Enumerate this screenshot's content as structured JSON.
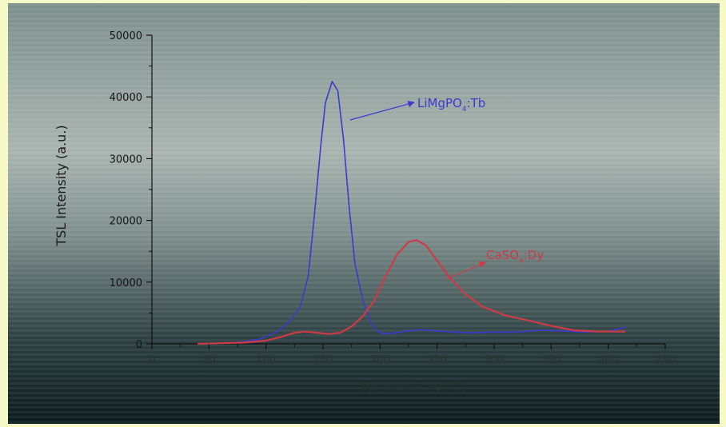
{
  "chart_data": {
    "type": "line",
    "title": "",
    "xlabel": "Temperature(°C)",
    "ylabel": "TSL Intensity (a.u.)",
    "xlim": [
      0,
      450
    ],
    "ylim": [
      0,
      50000
    ],
    "xticks": [
      "0",
      "50",
      "100",
      "150",
      "200",
      "250",
      "300",
      "350",
      "400",
      "450"
    ],
    "yticks": [
      "0",
      "10000",
      "20000",
      "30000",
      "40000",
      "50000"
    ],
    "grid": false,
    "series": [
      {
        "name": "LiMgPO4:Tb",
        "color": "#3d3ad0",
        "x": [
          40,
          60,
          80,
          95,
          110,
          120,
          130,
          137,
          142,
          148,
          152,
          158,
          163,
          168,
          173,
          178,
          185,
          192,
          198,
          203,
          210,
          220,
          235,
          250,
          265,
          280,
          300,
          320,
          340,
          360,
          380,
          400,
          415
        ],
        "y": [
          0,
          100,
          300,
          800,
          2000,
          3500,
          6000,
          11000,
          20000,
          32000,
          39000,
          42500,
          41000,
          33000,
          22000,
          13000,
          7000,
          3500,
          2000,
          1700,
          1700,
          2000,
          2300,
          2100,
          1900,
          1800,
          1900,
          1900,
          2200,
          2100,
          1900,
          2000,
          2700
        ]
      },
      {
        "name": "CaSO4:Dy",
        "color": "#cc3b46",
        "x": [
          40,
          60,
          80,
          100,
          115,
          125,
          135,
          145,
          155,
          165,
          175,
          185,
          195,
          205,
          215,
          225,
          232,
          240,
          250,
          260,
          275,
          290,
          310,
          330,
          350,
          370,
          390,
          415
        ],
        "y": [
          0,
          100,
          200,
          500,
          1200,
          1800,
          2000,
          1800,
          1600,
          1800,
          2800,
          4500,
          7000,
          11000,
          14500,
          16500,
          16800,
          16000,
          13500,
          11000,
          8000,
          6000,
          4600,
          3800,
          2900,
          2200,
          2000,
          2000
        ]
      }
    ],
    "annotations": [
      {
        "label_parts": [
          "LiMgPO",
          "4",
          ":Tb"
        ],
        "series": "LiMgPO4:Tb"
      },
      {
        "label_parts": [
          "CaSO",
          "4",
          ":Dy"
        ],
        "series": "CaSO4:Dy"
      }
    ]
  }
}
